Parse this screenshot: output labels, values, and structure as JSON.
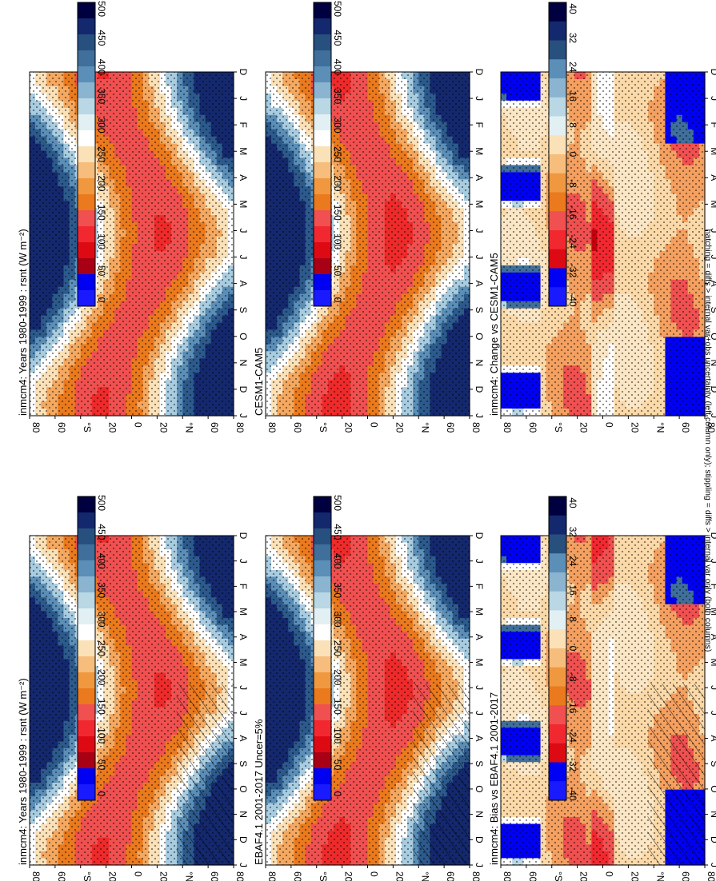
{
  "footer_caption": "hatching = diffs > internal var+obs uncertainty (left column only); stippling = diffs > internal var only (both columns)",
  "colors": {
    "absolute_scale": [
      "#000040",
      "#14286e",
      "#28507f",
      "#3f6f9a",
      "#5b8fb8",
      "#8bb4d1",
      "#b9d7e4",
      "#e2f0f3",
      "#ffffff",
      "#fbe1b8",
      "#f6bd7c",
      "#f0983f",
      "#ea7a1d",
      "#f05050",
      "#f22830",
      "#dd0a14",
      "#a80015",
      "#0000f2",
      "#1a1aff"
    ],
    "difference_scale": [
      "#000040",
      "#14286e",
      "#28507f",
      "#5b8fb8",
      "#8bb4d1",
      "#b9d7e4",
      "#e2f0f3",
      "#fbe1b8",
      "#f6bd7c",
      "#f0983f",
      "#ea7a1d",
      "#f05050",
      "#f22830",
      "#dd0a14",
      "#0000f2",
      "#1a1aff"
    ]
  },
  "colorbar_absolute": {
    "labels": [
      "500",
      "450",
      "400",
      "350",
      "300",
      "250",
      "200",
      "150",
      "100",
      "50",
      "0"
    ]
  },
  "colorbar_difference": {
    "labels": [
      "40",
      "32",
      "24",
      "16",
      "8",
      "0",
      "-8",
      "-16",
      "-24",
      "-32",
      "-40"
    ]
  },
  "chart_data": [
    {
      "type": "heatmap",
      "panel": "left-top",
      "title": "inmcm4: Years 1980-1999 : rsnt (W m⁻²)",
      "variable": "rsnt",
      "units": "W m-2",
      "months": [
        "D",
        "J",
        "F",
        "M",
        "A",
        "M",
        "J",
        "J",
        "A",
        "S",
        "O",
        "N",
        "D",
        "J"
      ],
      "lat_ticks": [
        "80",
        "60",
        "°N",
        "20",
        "0",
        "20",
        "°S",
        "60",
        "80"
      ],
      "lat_values": [
        -80,
        -60,
        -40,
        -20,
        0,
        20,
        40,
        60,
        80
      ],
      "zlim": [
        0,
        500
      ],
      "hatching": true,
      "stippling": true
    },
    {
      "type": "heatmap",
      "panel": "right-top",
      "title": "inmcm4: Years 1980-1999 : rsnt (W m⁻²)",
      "variable": "rsnt",
      "units": "W m-2",
      "months": [
        "D",
        "J",
        "F",
        "M",
        "A",
        "M",
        "J",
        "J",
        "A",
        "S",
        "O",
        "N",
        "D",
        "J"
      ],
      "lat_ticks": [
        "80",
        "60",
        "°N",
        "20",
        "0",
        "20",
        "°S",
        "60",
        "80"
      ],
      "lat_values": [
        -80,
        -60,
        -40,
        -20,
        0,
        20,
        40,
        60,
        80
      ],
      "zlim": [
        0,
        500
      ],
      "hatching": false,
      "stippling": true
    },
    {
      "type": "heatmap",
      "panel": "left-middle",
      "title": "EBAF4.1 2001-2017 Uncer=5%",
      "variable": "rsnt",
      "units": "W m-2",
      "months": [
        "D",
        "J",
        "F",
        "M",
        "A",
        "M",
        "J",
        "J",
        "A",
        "S",
        "O",
        "N",
        "D",
        "J"
      ],
      "lat_ticks": [
        "80",
        "60",
        "°N",
        "20",
        "0",
        "20",
        "°S",
        "60",
        "80"
      ],
      "lat_values": [
        -80,
        -60,
        -40,
        -20,
        0,
        20,
        40,
        60,
        80
      ],
      "zlim": [
        0,
        500
      ],
      "hatching": true,
      "stippling": true
    },
    {
      "type": "heatmap",
      "panel": "right-middle",
      "title": "CESM1-CAM5",
      "variable": "rsnt",
      "units": "W m-2",
      "months": [
        "D",
        "J",
        "F",
        "M",
        "A",
        "M",
        "J",
        "J",
        "A",
        "S",
        "O",
        "N",
        "D",
        "J"
      ],
      "lat_ticks": [
        "80",
        "60",
        "°N",
        "20",
        "0",
        "20",
        "°S",
        "60",
        "80"
      ],
      "lat_values": [
        -80,
        -60,
        -40,
        -20,
        0,
        20,
        40,
        60,
        80
      ],
      "zlim": [
        0,
        500
      ],
      "hatching": false,
      "stippling": true
    },
    {
      "type": "heatmap",
      "panel": "left-bottom",
      "title": "inmcm4: Bias vs EBAF4.1 2001-2017",
      "variable": "rsnt difference",
      "units": "W m-2",
      "months": [
        "D",
        "J",
        "F",
        "M",
        "A",
        "M",
        "J",
        "J",
        "A",
        "S",
        "O",
        "N",
        "D",
        "J"
      ],
      "lat_ticks": [
        "80",
        "60",
        "°N",
        "20",
        "0",
        "20",
        "°S",
        "60",
        "80"
      ],
      "lat_values": [
        -80,
        -60,
        -40,
        -20,
        0,
        20,
        40,
        60,
        80
      ],
      "zlim": [
        -40,
        40
      ],
      "hatching": true,
      "stippling": true
    },
    {
      "type": "heatmap",
      "panel": "right-bottom",
      "title": "inmcm4: Change vs CESM1-CAM5",
      "variable": "rsnt difference",
      "units": "W m-2",
      "months": [
        "D",
        "J",
        "F",
        "M",
        "A",
        "M",
        "J",
        "J",
        "A",
        "S",
        "O",
        "N",
        "D",
        "J"
      ],
      "lat_ticks": [
        "80",
        "60",
        "°N",
        "20",
        "0",
        "20",
        "°S",
        "60",
        "80"
      ],
      "lat_values": [
        -80,
        -60,
        -40,
        -20,
        0,
        20,
        40,
        60,
        80
      ],
      "zlim": [
        -40,
        40
      ],
      "hatching": false,
      "stippling": true
    }
  ]
}
